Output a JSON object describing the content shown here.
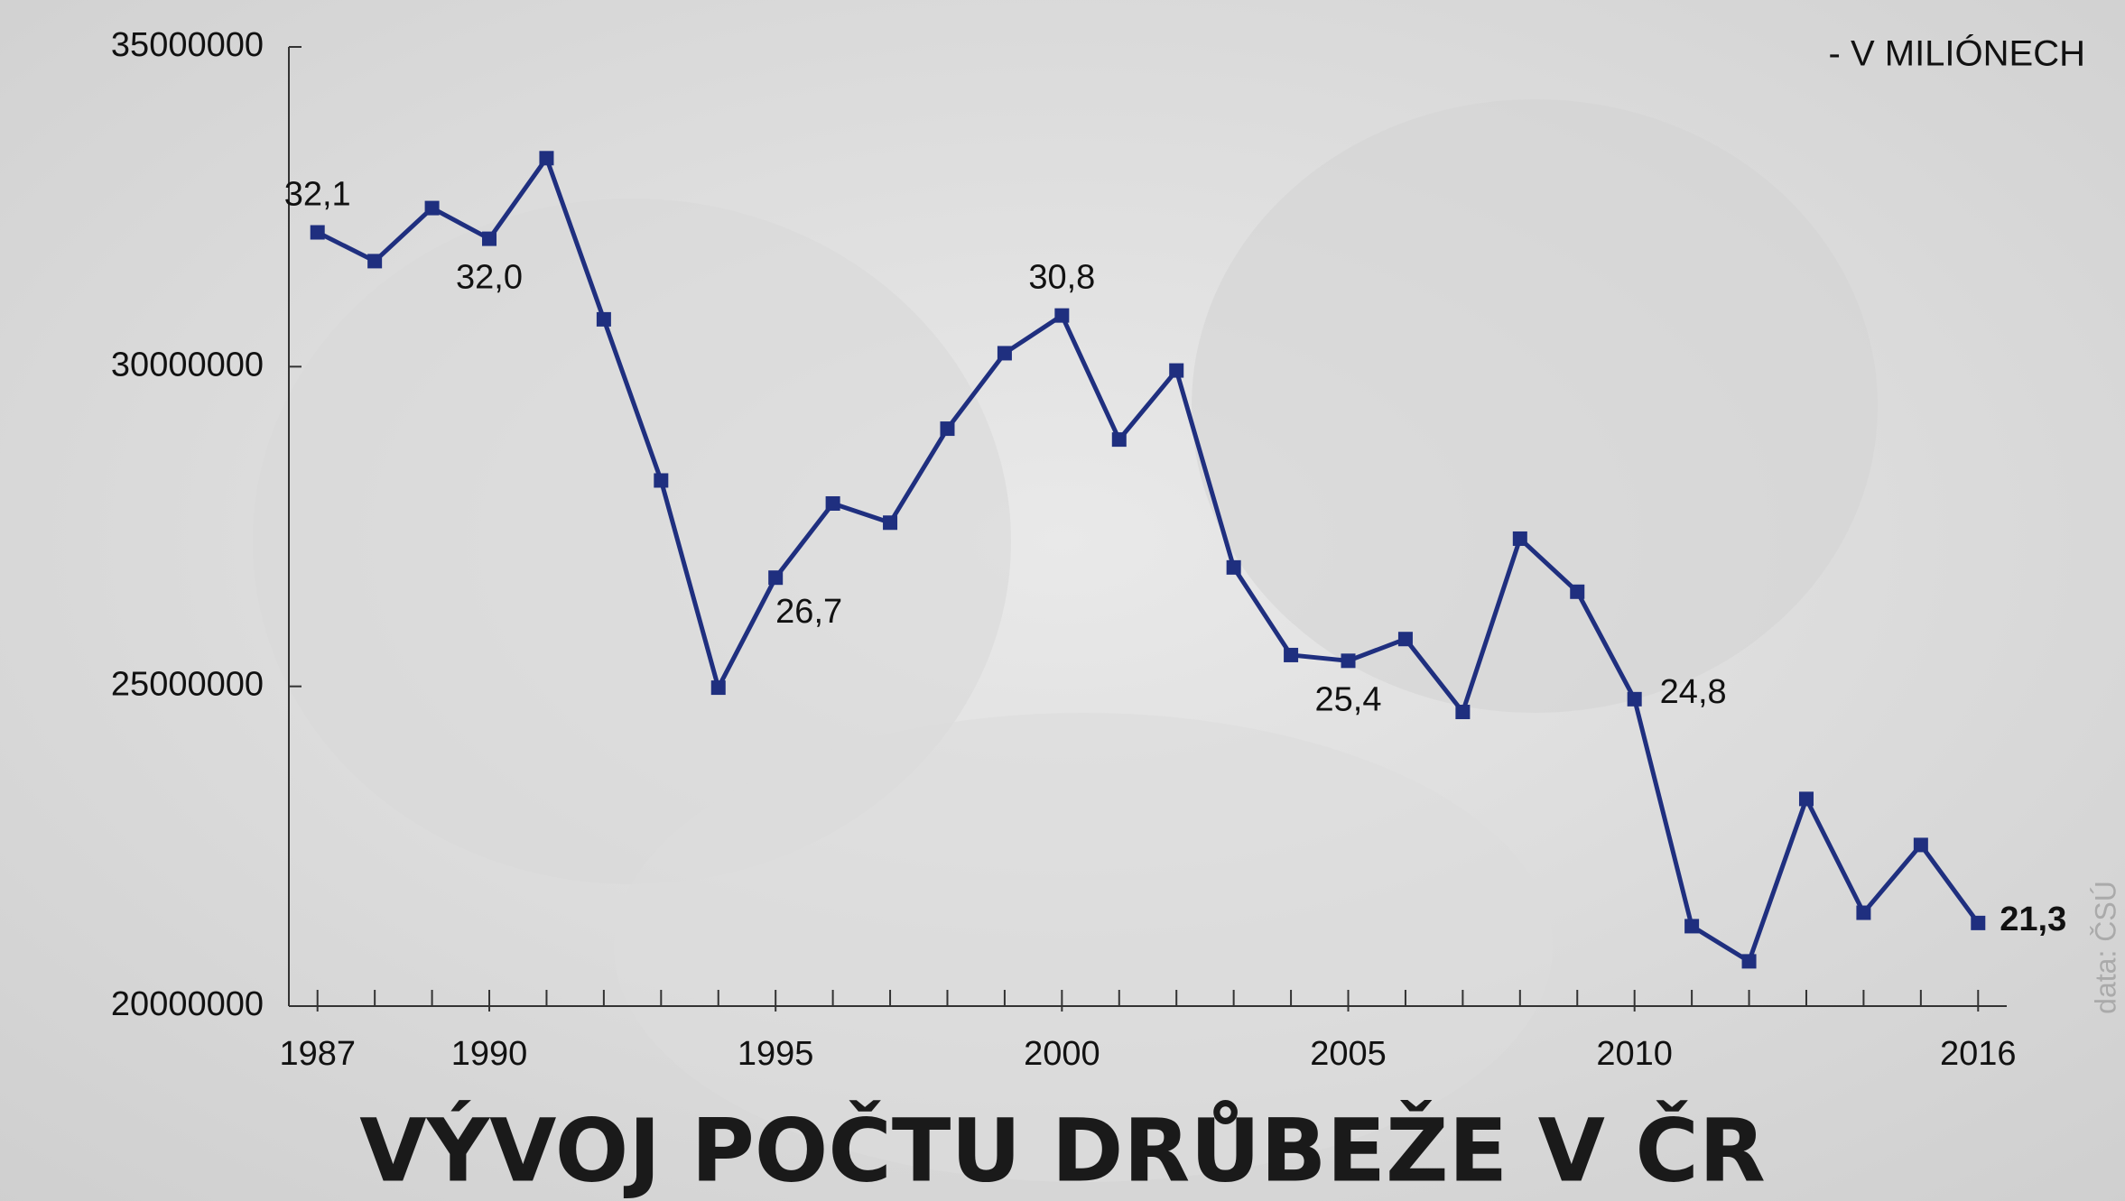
{
  "chart_data": {
    "type": "line",
    "title": "VÝVOJ POČTU DRŮBEŽE V ČR",
    "annotation": "- V MILIÓNECH",
    "source": "data: ČSÚ",
    "x": [
      1987,
      1988,
      1989,
      1990,
      1991,
      1992,
      1993,
      1994,
      1995,
      1996,
      1997,
      1998,
      1999,
      2000,
      2001,
      2002,
      2003,
      2004,
      2005,
      2006,
      2007,
      2008,
      2009,
      2010,
      2011,
      2012,
      2013,
      2014,
      2015,
      2016
    ],
    "series": [
      {
        "color": "#1f2f7f",
        "values": [
          32100000,
          31650000,
          32480000,
          32000000,
          33260000,
          30740000,
          28220000,
          24980000,
          26700000,
          27860000,
          27560000,
          29030000,
          30210000,
          30800000,
          28860000,
          29940000,
          26860000,
          25490000,
          25400000,
          25740000,
          24600000,
          27310000,
          26480000,
          24800000,
          21250000,
          20700000,
          23240000,
          21460000,
          22520000,
          21300000
        ],
        "value_labels": [
          "32,1",
          null,
          null,
          "32,0",
          null,
          null,
          null,
          null,
          "26,7",
          null,
          null,
          null,
          null,
          "30,8",
          null,
          null,
          null,
          null,
          "25,4",
          null,
          null,
          null,
          null,
          "24,8",
          null,
          null,
          null,
          null,
          null,
          "21,3"
        ]
      }
    ],
    "xlim": [
      1986.5,
      2016.5
    ],
    "xticks": [
      1987,
      1990,
      1995,
      2000,
      2005,
      2010,
      2016
    ],
    "ylim": [
      20000000,
      35000000
    ],
    "yticks": [
      20000000,
      25000000,
      30000000,
      35000000
    ]
  }
}
